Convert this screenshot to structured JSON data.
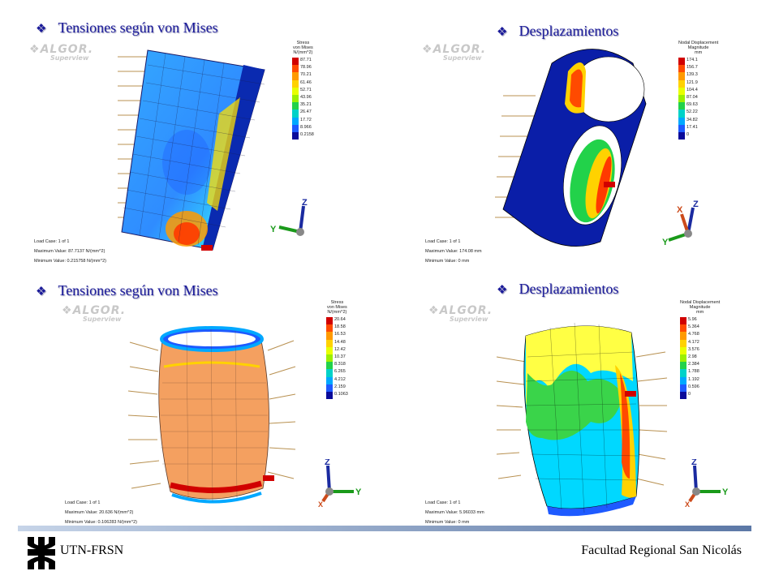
{
  "panels": [
    {
      "title": "Tensiones según von Mises",
      "logo": "ALGOR.",
      "logo_sub": "Superview",
      "legend_title": [
        "Stress",
        "von Mises",
        "N/(mm^2)"
      ],
      "legend_values": [
        "87.71",
        "78.96",
        "70.21",
        "61.46",
        "52.71",
        "43.96",
        "35.21",
        "26.47",
        "17.72",
        "8.966",
        "0.2158"
      ],
      "info": [
        "Load Case:  1 of 1",
        "Maximum Value: 87.7137 N/(mm^2)",
        "Minimum Value: 0.215758 N/(mm^2)"
      ],
      "max_tag": "Max"
    },
    {
      "title": "Desplazamientos",
      "logo": "ALGOR.",
      "logo_sub": "Superview",
      "legend_title": [
        "Nodal Displacement",
        "Magnitude",
        "mm"
      ],
      "legend_values": [
        "174.1",
        "156.7",
        "139.3",
        "121.9",
        "104.4",
        "87.04",
        "69.63",
        "52.22",
        "34.82",
        "17.41",
        "0"
      ],
      "info": [
        "Load Case:  1 of 1",
        "Maximum Value: 174.08 mm",
        "Minimum Value: 0 mm"
      ],
      "max_tag": "Max"
    },
    {
      "title": "Tensiones según von Mises",
      "logo": "ALGOR.",
      "logo_sub": "Superview",
      "legend_title": [
        "Stress",
        "von Mises",
        "N/(mm^2)"
      ],
      "legend_values": [
        "20.64",
        "18.58",
        "16.53",
        "14.48",
        "12.42",
        "10.37",
        "8.318",
        "6.265",
        "4.212",
        "2.159",
        "0.1063"
      ],
      "info": [
        "Load Case:  1 of 1",
        "Maximum Value: 20.636 N/(mm^2)",
        "Minimum Value: 0.106283 N/(mm^2)"
      ],
      "max_tag": "Max"
    },
    {
      "title": "Desplazamientos",
      "logo": "ALGOR.",
      "logo_sub": "Superview",
      "legend_title": [
        "Nodal Displacement",
        "Magnitude",
        "mm"
      ],
      "legend_values": [
        "5.96",
        "5.364",
        "4.768",
        "4.172",
        "3.576",
        "2.98",
        "2.384",
        "1.788",
        "1.192",
        "0.596",
        "0"
      ],
      "info": [
        "Load Case:  1 of 1",
        "Maximum Value: 5.96033 mm",
        "Minimum Value: 0 mm"
      ],
      "max_tag": "Max"
    }
  ],
  "legend_colors": [
    "#d10000",
    "#ff4a00",
    "#ff9a00",
    "#ffd200",
    "#e8ff00",
    "#9cf000",
    "#22d24a",
    "#00d2c8",
    "#00a8ff",
    "#1e5aff",
    "#0a0a9a"
  ],
  "axis": {
    "z": "Z",
    "y": "Y",
    "x": "X"
  },
  "footer": {
    "left": "UTN-FRSN",
    "right": "Facultad Regional San Nicolás"
  }
}
